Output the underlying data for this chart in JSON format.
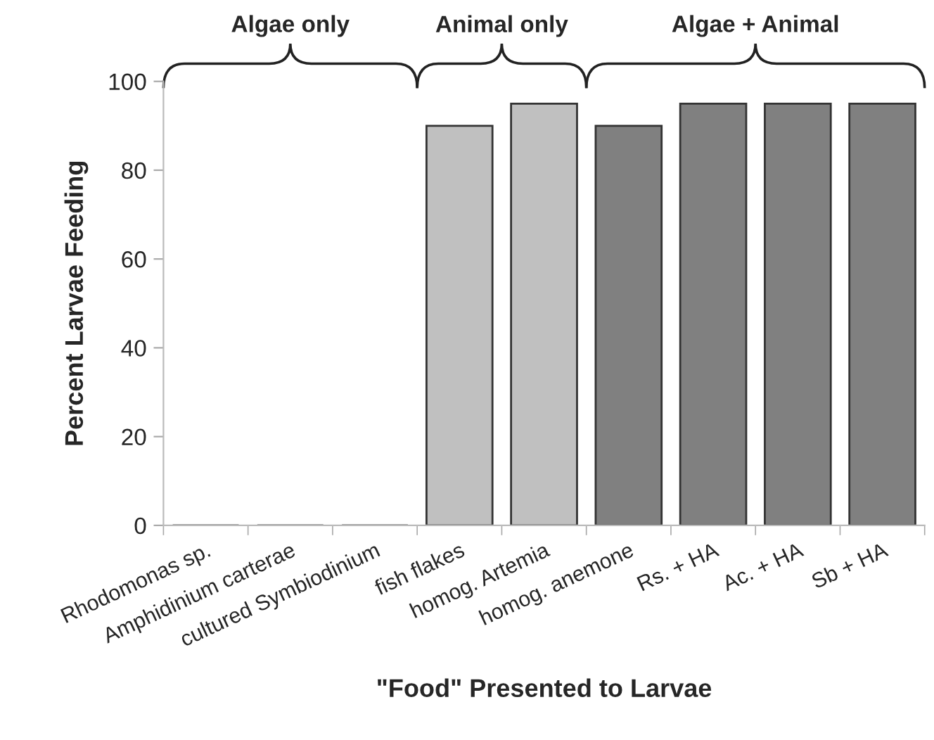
{
  "chart_data": {
    "type": "bar",
    "xlabel": "\"Food\" Presented to Larvae",
    "ylabel": "Percent Larvae Feeding",
    "categories": [
      "Rhodomonas sp.",
      "Amphidinium carterae",
      "cultured Symbiodinium",
      "fish flakes",
      "homog. Artemia",
      "homog. anemone",
      "Rs. + HA",
      "Ac. + HA",
      "Sb + HA"
    ],
    "values": [
      0,
      0,
      0,
      90,
      95,
      90,
      95,
      95,
      95
    ],
    "colors": [
      "#c0c0c0",
      "#c0c0c0",
      "#c0c0c0",
      "#c0c0c0",
      "#c0c0c0",
      "#808080",
      "#808080",
      "#808080",
      "#808080"
    ],
    "ylim": [
      0,
      100
    ],
    "yticks": [
      0,
      20,
      40,
      60,
      80,
      100
    ],
    "grid": false,
    "legend": false,
    "annotations": [
      "Algae only",
      "Animal only",
      "Algae + Animal"
    ]
  }
}
